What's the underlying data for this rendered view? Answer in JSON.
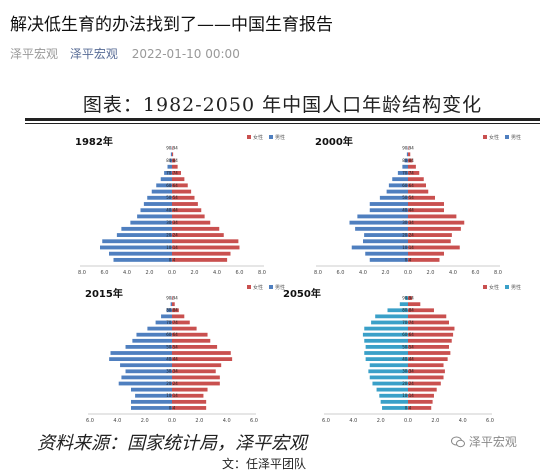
{
  "article": {
    "title": "解决低生育的办法找到了——中国生育报告",
    "author": "泽平宏观",
    "account": "泽平宏观",
    "date": "2022-01-10 00:00",
    "credit": "文：任泽平团队"
  },
  "figure": {
    "title": "图表：1982-2050 年中国人口年龄结构变化",
    "source": "资料来源：国家统计局，泽平宏观",
    "watermark": "泽平宏观"
  },
  "colors": {
    "female": "#c9504f",
    "male": "#4f7fbf",
    "male_2050": "#3aa0c8"
  },
  "chart_data": [
    {
      "type": "bar",
      "title": "1982年",
      "legend": [
        "女性",
        "男性"
      ],
      "legend_position": "top-right",
      "categories": [
        "0-4",
        "5-9",
        "10-14",
        "15-19",
        "20-24",
        "25-29",
        "30-34",
        "35-39",
        "40-44",
        "45-49",
        "50-54",
        "55-59",
        "60-64",
        "65-69",
        "70-74",
        "75-79",
        "80-84",
        "85-89",
        "90-94"
      ],
      "labeled_ticks": [
        "0-4",
        "10-14",
        "20-24",
        "30-34",
        "40-44",
        "50-54",
        "60-64",
        "70-74",
        "80-84",
        "90-94"
      ],
      "xticks": [
        "8.0",
        "6.0",
        "4.0",
        "2.0",
        "0.0",
        "2.0",
        "4.0",
        "6.0",
        "8.0"
      ],
      "xlim": [
        -8,
        8
      ],
      "series": [
        {
          "name": "女性",
          "values": [
            4.9,
            5.2,
            6.0,
            5.9,
            4.6,
            4.2,
            3.4,
            2.9,
            2.6,
            2.3,
            2.0,
            1.7,
            1.4,
            1.1,
            0.8,
            0.5,
            0.3,
            0.1,
            0.05
          ]
        },
        {
          "name": "男性",
          "values": [
            5.2,
            5.6,
            6.4,
            6.2,
            4.9,
            4.5,
            3.7,
            3.1,
            2.8,
            2.5,
            2.2,
            1.8,
            1.4,
            1.0,
            0.7,
            0.4,
            0.2,
            0.1,
            0.03
          ]
        }
      ]
    },
    {
      "type": "bar",
      "title": "2000年",
      "legend": [
        "女性",
        "男性"
      ],
      "legend_position": "top-right",
      "categories": [
        "0-4",
        "5-9",
        "10-14",
        "15-19",
        "20-24",
        "25-29",
        "30-34",
        "35-39",
        "40-44",
        "45-49",
        "50-54",
        "55-59",
        "60-64",
        "65-69",
        "70-74",
        "75-79",
        "80-84",
        "85-89",
        "90-94"
      ],
      "labeled_ticks": [
        "0-4",
        "10-14",
        "20-24",
        "30-34",
        "40-44",
        "50-54",
        "60-64",
        "70-74",
        "80-84",
        "90-94"
      ],
      "xticks": [
        "8.0",
        "6.0",
        "4.0",
        "2.0",
        "0.0",
        "2.0",
        "4.0",
        "6.0",
        "8.0"
      ],
      "xlim": [
        -8,
        8
      ],
      "series": [
        {
          "name": "女性",
          "values": [
            2.8,
            3.2,
            4.6,
            3.8,
            3.9,
            4.7,
            5.0,
            4.3,
            3.2,
            3.2,
            2.4,
            1.8,
            1.6,
            1.4,
            1.0,
            0.7,
            0.4,
            0.2,
            0.05
          ]
        },
        {
          "name": "男性",
          "values": [
            3.4,
            3.8,
            5.0,
            4.0,
            3.9,
            4.7,
            5.2,
            4.5,
            3.4,
            3.4,
            2.5,
            1.9,
            1.7,
            1.4,
            0.9,
            0.5,
            0.3,
            0.1,
            0.03
          ]
        }
      ]
    },
    {
      "type": "bar",
      "title": "2015年",
      "legend": [
        "女性",
        "男性"
      ],
      "legend_position": "top-right",
      "categories": [
        "0-4",
        "5-9",
        "10-14",
        "15-19",
        "20-24",
        "25-29",
        "30-34",
        "35-39",
        "40-44",
        "45-49",
        "50-54",
        "55-59",
        "60-64",
        "65-69",
        "70-74",
        "75-79",
        "80-84",
        "85-89",
        "90-94"
      ],
      "labeled_ticks": [
        "0-4",
        "10-14",
        "20-24",
        "30-34",
        "40-44",
        "50-54",
        "60-64",
        "70-74",
        "80-84",
        "90-94"
      ],
      "xticks": [
        "6.0",
        "4.0",
        "2.0",
        "0.0",
        "2.0",
        "4.0",
        "6.0"
      ],
      "xlim": [
        -6,
        6
      ],
      "series": [
        {
          "name": "女性",
          "values": [
            2.5,
            2.5,
            2.3,
            2.6,
            3.5,
            3.5,
            3.2,
            3.6,
            4.4,
            4.3,
            3.3,
            2.8,
            2.6,
            1.8,
            1.3,
            0.9,
            0.5,
            0.2,
            0.05
          ]
        },
        {
          "name": "男性",
          "values": [
            3.0,
            3.0,
            2.7,
            3.0,
            3.9,
            3.7,
            3.4,
            3.8,
            4.6,
            4.5,
            3.4,
            2.9,
            2.6,
            1.8,
            1.2,
            0.8,
            0.4,
            0.1,
            0.03
          ]
        }
      ]
    },
    {
      "type": "bar",
      "title": "2050年",
      "legend": [
        "女性",
        "男性"
      ],
      "legend_position": "top-right",
      "categories": [
        "0-4",
        "5-9",
        "10-14",
        "15-19",
        "20-24",
        "25-29",
        "30-34",
        "35-39",
        "40-44",
        "45-49",
        "50-54",
        "55-59",
        "60-64",
        "65-69",
        "70-74",
        "75-79",
        "80-84",
        "85-89",
        "90-94"
      ],
      "labeled_ticks": [
        "0-4",
        "10-14",
        "20-24",
        "30-34",
        "40-44",
        "50-54",
        "60-64",
        "70-74",
        "80-84",
        "90-94"
      ],
      "xticks": [
        "6.0",
        "4.0",
        "2.0",
        "0.0",
        "2.0",
        "4.0",
        "6.0"
      ],
      "xlim": [
        -6,
        6
      ],
      "series": [
        {
          "name": "女性",
          "values": [
            1.7,
            1.8,
            1.9,
            2.1,
            2.4,
            2.6,
            2.7,
            2.6,
            2.9,
            3.1,
            3.0,
            3.2,
            3.3,
            3.4,
            3.0,
            2.8,
            1.9,
            0.9,
            0.3
          ]
        },
        {
          "name": "男性",
          "values": [
            1.9,
            2.0,
            2.1,
            2.3,
            2.6,
            2.8,
            2.9,
            2.8,
            3.1,
            3.2,
            3.1,
            3.2,
            3.3,
            3.2,
            2.7,
            2.4,
            1.5,
            0.6,
            0.2
          ]
        }
      ]
    }
  ]
}
